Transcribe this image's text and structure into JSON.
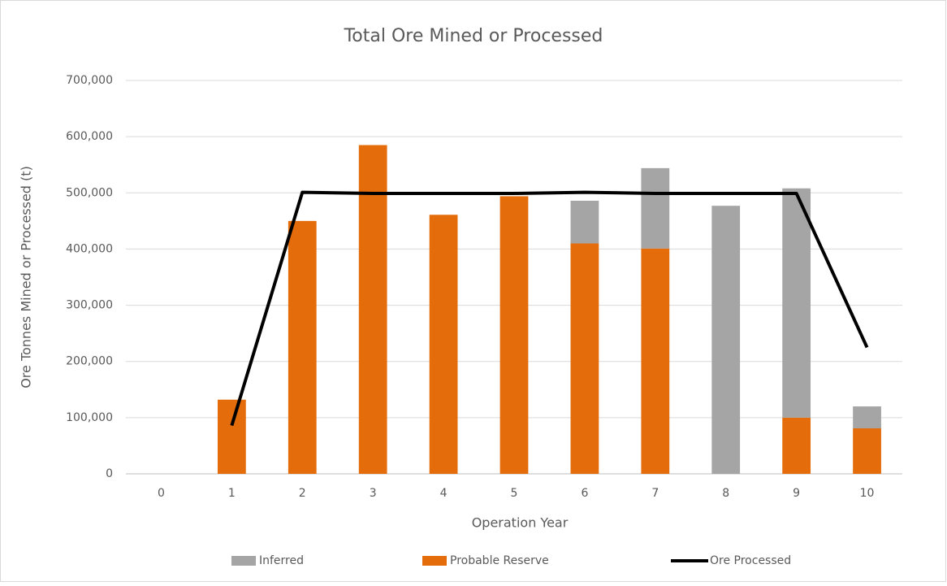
{
  "chart_data": {
    "type": "bar",
    "stacked": true,
    "title": "Total Ore Mined or Processed",
    "x_label": "Operation Year",
    "y_label": "Ore Tonnes Mined or Processed (t)",
    "categories": [
      "0",
      "1",
      "2",
      "3",
      "4",
      "5",
      "6",
      "7",
      "8",
      "9",
      "10"
    ],
    "series": [
      {
        "name": "Inferred",
        "type": "bar",
        "color": "#a5a5a5",
        "stack_order": 1,
        "values": [
          0,
          0,
          0,
          0,
          0,
          0,
          76000,
          143000,
          477000,
          408000,
          39000
        ]
      },
      {
        "name": "Probable Reserve",
        "type": "bar",
        "color": "#e46c0a",
        "stack_order": 0,
        "values": [
          0,
          132000,
          450000,
          585000,
          461000,
          494000,
          410000,
          401000,
          0,
          100000,
          81000
        ]
      },
      {
        "name": "Ore Processed",
        "type": "line",
        "color": "#000000",
        "values": [
          null,
          86000,
          501000,
          499000,
          499000,
          499000,
          501000,
          499000,
          499000,
          499000,
          225000
        ]
      }
    ],
    "ylim": [
      0,
      700000
    ],
    "yticks": [
      0,
      {
        "value": 100000,
        "label": "100,000"
      },
      {
        "value": 200000,
        "label": "200,000"
      },
      {
        "value": 300000,
        "label": "300,000"
      },
      {
        "value": 400000,
        "label": "400,000"
      },
      {
        "value": 500000,
        "label": "500,000"
      },
      {
        "value": 600000,
        "label": "600,000"
      },
      {
        "value": 700000,
        "label": "700,000"
      }
    ],
    "grid": true,
    "legend": "bottom"
  }
}
